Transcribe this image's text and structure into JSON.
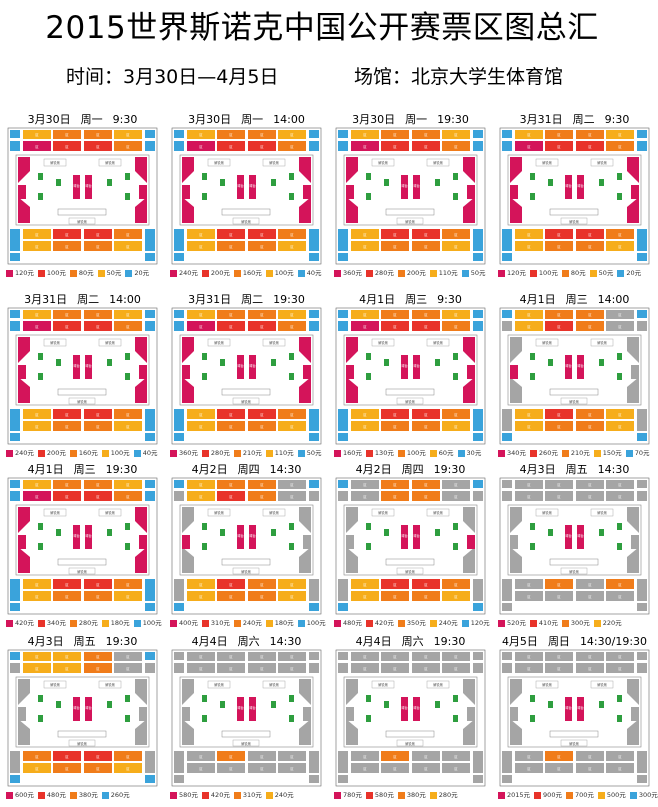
{
  "header": {
    "title": "2015世界斯诺克中国公开赛票区图总汇",
    "time": "时间：3月30日—4月5日",
    "venue": "场馆：北京大学生体育馆"
  },
  "colors": {
    "magenta": "#d4145a",
    "red": "#e8332a",
    "orange": "#f07c1a",
    "yellow": "#f6ad1b",
    "blue": "#3aa3db",
    "gray": "#a5a5a5",
    "green": "#2e9e3f"
  },
  "map_labels": {
    "block": "区",
    "table": "球台",
    "commentary": "解说席"
  },
  "sessions": [
    {
      "date": "3月30日",
      "weekday": "周一",
      "time": "9:30",
      "scheme": "A",
      "prices": [
        {
          "label": "120元",
          "color": "#d4145a"
        },
        {
          "label": "100元",
          "color": "#e8332a"
        },
        {
          "label": "80元",
          "color": "#f07c1a"
        },
        {
          "label": "50元",
          "color": "#f6ad1b"
        },
        {
          "label": "20元",
          "color": "#3aa3db"
        }
      ]
    },
    {
      "date": "3月30日",
      "weekday": "周一",
      "time": "14:00",
      "scheme": "A",
      "prices": [
        {
          "label": "240元",
          "color": "#d4145a"
        },
        {
          "label": "200元",
          "color": "#e8332a"
        },
        {
          "label": "160元",
          "color": "#f07c1a"
        },
        {
          "label": "100元",
          "color": "#f6ad1b"
        },
        {
          "label": "40元",
          "color": "#3aa3db"
        }
      ]
    },
    {
      "date": "3月30日",
      "weekday": "周一",
      "time": "19:30",
      "scheme": "A",
      "prices": [
        {
          "label": "360元",
          "color": "#d4145a"
        },
        {
          "label": "280元",
          "color": "#e8332a"
        },
        {
          "label": "200元",
          "color": "#f07c1a"
        },
        {
          "label": "110元",
          "color": "#f6ad1b"
        },
        {
          "label": "50元",
          "color": "#3aa3db"
        }
      ]
    },
    {
      "date": "3月31日",
      "weekday": "周二",
      "time": "9:30",
      "scheme": "A",
      "prices": [
        {
          "label": "120元",
          "color": "#d4145a"
        },
        {
          "label": "100元",
          "color": "#e8332a"
        },
        {
          "label": "80元",
          "color": "#f07c1a"
        },
        {
          "label": "50元",
          "color": "#f6ad1b"
        },
        {
          "label": "20元",
          "color": "#3aa3db"
        }
      ]
    },
    {
      "date": "3月31日",
      "weekday": "周二",
      "time": "14:00",
      "scheme": "A",
      "prices": [
        {
          "label": "240元",
          "color": "#d4145a"
        },
        {
          "label": "200元",
          "color": "#e8332a"
        },
        {
          "label": "160元",
          "color": "#f07c1a"
        },
        {
          "label": "100元",
          "color": "#f6ad1b"
        },
        {
          "label": "40元",
          "color": "#3aa3db"
        }
      ]
    },
    {
      "date": "3月31日",
      "weekday": "周二",
      "time": "19:30",
      "scheme": "A",
      "prices": [
        {
          "label": "360元",
          "color": "#d4145a"
        },
        {
          "label": "280元",
          "color": "#e8332a"
        },
        {
          "label": "210元",
          "color": "#f07c1a"
        },
        {
          "label": "110元",
          "color": "#f6ad1b"
        },
        {
          "label": "50元",
          "color": "#3aa3db"
        }
      ]
    },
    {
      "date": "4月1日",
      "weekday": "周三",
      "time": "9:30",
      "scheme": "A",
      "prices": [
        {
          "label": "160元",
          "color": "#d4145a"
        },
        {
          "label": "130元",
          "color": "#e8332a"
        },
        {
          "label": "100元",
          "color": "#f07c1a"
        },
        {
          "label": "60元",
          "color": "#f6ad1b"
        },
        {
          "label": "30元",
          "color": "#3aa3db"
        }
      ]
    },
    {
      "date": "4月1日",
      "weekday": "周三",
      "time": "14:00",
      "scheme": "B",
      "prices": [
        {
          "label": "340元",
          "color": "#d4145a"
        },
        {
          "label": "260元",
          "color": "#e8332a"
        },
        {
          "label": "210元",
          "color": "#f07c1a"
        },
        {
          "label": "150元",
          "color": "#f6ad1b"
        },
        {
          "label": "70元",
          "color": "#3aa3db"
        }
      ]
    },
    {
      "date": "4月1日",
      "weekday": "周三",
      "time": "19:30",
      "scheme": "A",
      "prices": [
        {
          "label": "420元",
          "color": "#d4145a"
        },
        {
          "label": "340元",
          "color": "#e8332a"
        },
        {
          "label": "280元",
          "color": "#f07c1a"
        },
        {
          "label": "180元",
          "color": "#f6ad1b"
        },
        {
          "label": "100元",
          "color": "#3aa3db"
        }
      ]
    },
    {
      "date": "4月2日",
      "weekday": "周四",
      "time": "14:30",
      "scheme": "B",
      "prices": [
        {
          "label": "400元",
          "color": "#d4145a"
        },
        {
          "label": "310元",
          "color": "#e8332a"
        },
        {
          "label": "240元",
          "color": "#f07c1a"
        },
        {
          "label": "180元",
          "color": "#f6ad1b"
        },
        {
          "label": "100元",
          "color": "#3aa3db"
        }
      ]
    },
    {
      "date": "4月2日",
      "weekday": "周四",
      "time": "19:30",
      "scheme": "C",
      "prices": [
        {
          "label": "480元",
          "color": "#d4145a"
        },
        {
          "label": "420元",
          "color": "#e8332a"
        },
        {
          "label": "350元",
          "color": "#f07c1a"
        },
        {
          "label": "240元",
          "color": "#f6ad1b"
        },
        {
          "label": "120元",
          "color": "#3aa3db"
        }
      ]
    },
    {
      "date": "4月3日",
      "weekday": "周五",
      "time": "14:30",
      "scheme": "D",
      "prices": [
        {
          "label": "520元",
          "color": "#d4145a"
        },
        {
          "label": "410元",
          "color": "#e8332a"
        },
        {
          "label": "300元",
          "color": "#f07c1a"
        },
        {
          "label": "220元",
          "color": "#f6ad1b"
        }
      ]
    },
    {
      "date": "4月3日",
      "weekday": "周五",
      "time": "19:30",
      "scheme": "E",
      "prices": [
        {
          "label": "600元",
          "color": "#d4145a"
        },
        {
          "label": "480元",
          "color": "#e8332a"
        },
        {
          "label": "380元",
          "color": "#f07c1a"
        },
        {
          "label": "260元",
          "color": "#3aa3db"
        }
      ]
    },
    {
      "date": "4月4日",
      "weekday": "周六",
      "time": "14:30",
      "scheme": "F",
      "prices": [
        {
          "label": "580元",
          "color": "#d4145a"
        },
        {
          "label": "420元",
          "color": "#e8332a"
        },
        {
          "label": "310元",
          "color": "#f07c1a"
        },
        {
          "label": "240元",
          "color": "#f6ad1b"
        }
      ]
    },
    {
      "date": "4月4日",
      "weekday": "周六",
      "time": "19:30",
      "scheme": "F",
      "prices": [
        {
          "label": "780元",
          "color": "#d4145a"
        },
        {
          "label": "580元",
          "color": "#e8332a"
        },
        {
          "label": "380元",
          "color": "#f07c1a"
        },
        {
          "label": "280元",
          "color": "#f6ad1b"
        }
      ]
    },
    {
      "date": "4月5日",
      "weekday": "周日",
      "time": "14:30/19:30",
      "scheme": "F",
      "prices": [
        {
          "label": "2015元",
          "color": "#d4145a"
        },
        {
          "label": "900元",
          "color": "#e8332a"
        },
        {
          "label": "700元",
          "color": "#f07c1a"
        },
        {
          "label": "500元",
          "color": "#f6ad1b"
        },
        {
          "label": "300元",
          "color": "#3aa3db"
        }
      ]
    }
  ]
}
